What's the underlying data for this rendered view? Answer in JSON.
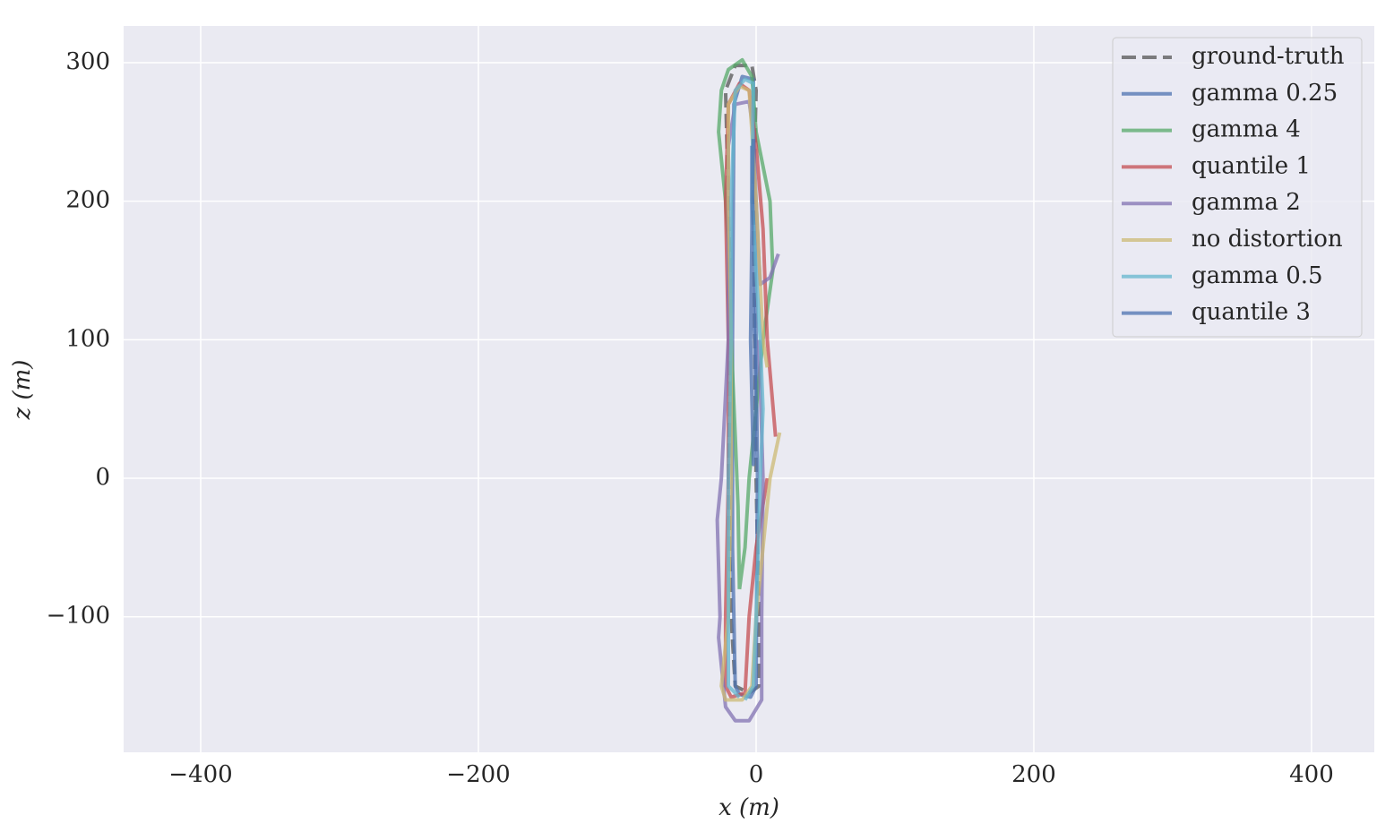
{
  "chart_data": {
    "type": "line",
    "xlabel": "x (m)",
    "ylabel": "z (m)",
    "xlim": [
      -455.5,
      445.2
    ],
    "ylim": [
      -197.8,
      326.5
    ],
    "xticks": [
      {
        "value": -400,
        "label": "−400"
      },
      {
        "value": -200,
        "label": "−200"
      },
      0,
      200,
      400
    ],
    "yticks": [
      {
        "value": -100,
        "label": "−100"
      },
      0,
      100,
      200,
      300
    ],
    "grid": true,
    "legend": "upper right",
    "series": [
      {
        "name": "ground-truth",
        "color": "#555555",
        "linestyle": "dashed",
        "x": [
          -20,
          -18,
          -20,
          -22,
          -15,
          -3,
          0,
          -2,
          -1,
          0,
          2,
          2,
          -5,
          -15,
          -18,
          -20
        ],
        "values": [
          0,
          100,
          200,
          280,
          298,
          298,
          280,
          200,
          100,
          0,
          -100,
          -150,
          -155,
          -150,
          -100,
          0
        ]
      },
      {
        "name": "gamma 0.25",
        "color": "#4c72b0",
        "linestyle": "solid",
        "x": [
          -15,
          -17,
          -17,
          -16,
          -10,
          -2,
          -1,
          0,
          1,
          0,
          -4,
          -12,
          -15
        ],
        "values": [
          -150,
          -50,
          100,
          270,
          290,
          288,
          200,
          100,
          0,
          -150,
          -158,
          -156,
          -150
        ]
      },
      {
        "name": "gamma 4",
        "color": "#55a868",
        "linestyle": "solid",
        "x": [
          -12,
          -8,
          -5,
          0,
          5,
          12,
          10,
          0,
          -3,
          -10,
          -20,
          -25,
          -27,
          -22,
          -20,
          -18,
          -15,
          -13,
          -12
        ],
        "values": [
          -80,
          -50,
          0,
          50,
          100,
          150,
          200,
          250,
          290,
          302,
          295,
          280,
          250,
          200,
          170,
          100,
          30,
          -20,
          -80
        ]
      },
      {
        "name": "quantile 1",
        "color": "#c44e52",
        "linestyle": "solid",
        "x": [
          14,
          8,
          5,
          0,
          -5,
          -12,
          -20,
          -22,
          -20,
          -20,
          -22,
          -22,
          -18,
          -8,
          -5,
          0,
          8
        ],
        "values": [
          30,
          100,
          180,
          240,
          280,
          285,
          270,
          200,
          100,
          0,
          -100,
          -150,
          -158,
          -155,
          -100,
          -50,
          0
        ]
      },
      {
        "name": "gamma 2",
        "color": "#8172b2",
        "linestyle": "solid",
        "x": [
          16,
          10,
          3,
          0,
          -2,
          -5,
          -15,
          -20,
          -20,
          -25,
          -28,
          -26,
          -27,
          -25,
          -22,
          -15,
          -5,
          4,
          4,
          5,
          2
        ],
        "values": [
          162,
          145,
          140,
          200,
          250,
          272,
          270,
          240,
          100,
          0,
          -30,
          -100,
          -115,
          -135,
          -165,
          -175,
          -175,
          -160,
          -100,
          0,
          100
        ]
      },
      {
        "name": "no distortion",
        "color": "#ccb974",
        "linestyle": "solid",
        "x": [
          17,
          10,
          5,
          0,
          -3,
          -10,
          -22,
          -25,
          -20,
          -18,
          -18,
          -20,
          -20,
          -12,
          -5,
          -3,
          0,
          5,
          8
        ],
        "values": [
          33,
          0,
          -50,
          -100,
          -150,
          -160,
          -160,
          -150,
          -100,
          0,
          100,
          200,
          270,
          283,
          280,
          250,
          200,
          100,
          80
        ]
      },
      {
        "name": "gamma 0.5",
        "color": "#64b5cd",
        "linestyle": "solid",
        "x": [
          -12,
          -20,
          -20,
          -18,
          -18,
          -15,
          -8,
          -2,
          -3,
          3,
          5,
          3,
          0,
          -2,
          -8
        ],
        "values": [
          -158,
          -150,
          0,
          100,
          200,
          280,
          288,
          285,
          200,
          100,
          50,
          0,
          -100,
          -150,
          -160
        ]
      },
      {
        "name": "quantile 3",
        "color": "#4c72b0",
        "linestyle": "solid",
        "x": [
          -3,
          -3,
          -1,
          0,
          -2,
          -4,
          -3,
          -2
        ],
        "values": [
          240,
          150,
          100,
          50,
          10,
          100,
          180,
          245
        ]
      }
    ]
  }
}
